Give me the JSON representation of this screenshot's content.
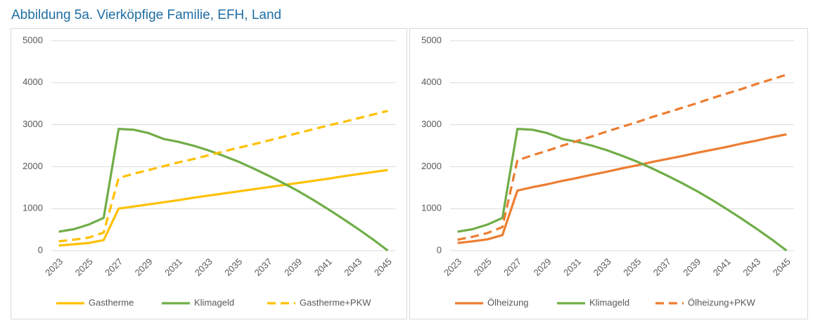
{
  "title": "Abbildung 5a. Vierköpfige Familie, EFH, Land",
  "chart_data": [
    {
      "type": "line",
      "categories": [
        "2023",
        null,
        "2025",
        null,
        "2027",
        null,
        "2029",
        null,
        "2031",
        null,
        "2033",
        null,
        "2035",
        null,
        "2037",
        null,
        "2039",
        null,
        "2041",
        null,
        "2043",
        null,
        "2045"
      ],
      "ylim": [
        0,
        5000
      ],
      "yticks": [
        0,
        1000,
        2000,
        3000,
        4000,
        5000
      ],
      "grid": true,
      "series": [
        {
          "name": "Gastherme",
          "color": "#ffc000",
          "dash": false,
          "values": [
            120,
            150,
            180,
            250,
            1000,
            1050,
            1100,
            1150,
            1200,
            1260,
            1310,
            1360,
            1410,
            1460,
            1510,
            1560,
            1610,
            1660,
            1710,
            1770,
            1820,
            1870,
            1920
          ]
        },
        {
          "name": "Klimageld",
          "color": "#70ad47",
          "dash": false,
          "values": [
            450,
            510,
            620,
            780,
            2900,
            2880,
            2800,
            2660,
            2590,
            2500,
            2390,
            2260,
            2120,
            1960,
            1790,
            1610,
            1420,
            1210,
            990,
            760,
            520,
            270,
            0
          ]
        },
        {
          "name": "Gastherme+PKW",
          "color": "#ffc000",
          "dash": true,
          "values": [
            220,
            260,
            310,
            430,
            1730,
            1830,
            1920,
            2010,
            2100,
            2180,
            2270,
            2360,
            2450,
            2530,
            2620,
            2710,
            2800,
            2890,
            2980,
            3060,
            3150,
            3240,
            3330
          ]
        }
      ]
    },
    {
      "type": "line",
      "categories": [
        "2023",
        null,
        "2025",
        null,
        "2027",
        null,
        "2029",
        null,
        "2031",
        null,
        "2033",
        null,
        "2035",
        null,
        "2037",
        null,
        "2039",
        null,
        "2041",
        null,
        "2043",
        null,
        "2045"
      ],
      "ylim": [
        0,
        5000
      ],
      "yticks": [
        0,
        1000,
        2000,
        3000,
        4000,
        5000
      ],
      "grid": true,
      "series": [
        {
          "name": "Ölheizung",
          "color": "#ed7d31",
          "dash": false,
          "values": [
            180,
            220,
            270,
            370,
            1430,
            1510,
            1580,
            1660,
            1730,
            1810,
            1880,
            1960,
            2030,
            2110,
            2180,
            2250,
            2330,
            2400,
            2470,
            2550,
            2620,
            2700,
            2770
          ]
        },
        {
          "name": "Klimageld",
          "color": "#70ad47",
          "dash": false,
          "values": [
            450,
            510,
            620,
            780,
            2900,
            2880,
            2800,
            2660,
            2590,
            2500,
            2390,
            2260,
            2120,
            1960,
            1790,
            1610,
            1420,
            1210,
            990,
            760,
            520,
            270,
            0
          ]
        },
        {
          "name": "Ölheizung+PKW",
          "color": "#ed7d31",
          "dash": true,
          "values": [
            260,
            330,
            420,
            560,
            2150,
            2270,
            2380,
            2500,
            2610,
            2720,
            2840,
            2950,
            3060,
            3180,
            3290,
            3400,
            3510,
            3630,
            3740,
            3850,
            3970,
            4080,
            4190
          ]
        }
      ]
    }
  ]
}
